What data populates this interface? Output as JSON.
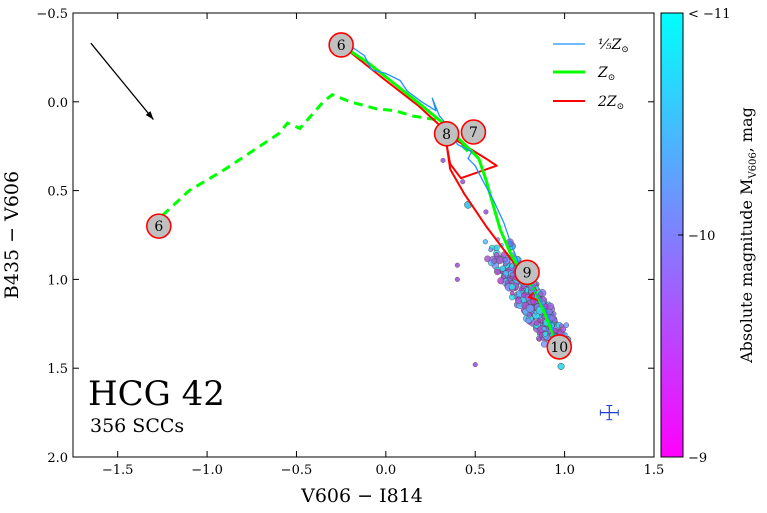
{
  "chart_data": {
    "type": "scatter",
    "title": "",
    "xlabel": "V606 − I814",
    "ylabel": "B435 − V606",
    "xlim": [
      -1.75,
      1.5
    ],
    "ylim": [
      2.0,
      -0.5
    ],
    "xticks": [
      -1.5,
      -1.0,
      -0.5,
      0.0,
      0.5,
      1.0,
      1.5
    ],
    "xtick_labels": [
      "−1.5",
      "−1.0",
      "−0.5",
      "0.0",
      "0.5",
      "1.0",
      "1.5"
    ],
    "yticks": [
      -0.5,
      0.0,
      0.5,
      1.0,
      1.5,
      2.0
    ],
    "ytick_labels": [
      "−0.5",
      "0.0",
      "0.5",
      "1.0",
      "1.5",
      "2.0"
    ],
    "annotation_main": "HCG 42",
    "annotation_sub": "356 SCCs",
    "colorbar": {
      "title": "Absolute magnitude M",
      "title_sub": "V606",
      "title_suffix": ", mag",
      "range": [
        -11,
        -9
      ],
      "tick_labels": [
        "< −11",
        "−10",
        "−9"
      ],
      "color_bright": "#00ffff",
      "color_faint": "#ff00ff"
    },
    "legend": [
      {
        "label": "⅕Z",
        "sub": "⊙",
        "color": "#1e90ff"
      },
      {
        "label": "Z",
        "sub": "⊙",
        "color": "#00ff00"
      },
      {
        "label": "2Z",
        "sub": "⊙",
        "color": "#ff0000"
      }
    ],
    "tracks": [
      {
        "name": "1/5 Zsun",
        "color": "#1e90ff",
        "width": 1.3,
        "points": [
          [
            -0.25,
            -0.35
          ],
          [
            -0.12,
            -0.26
          ],
          [
            -0.08,
            -0.18
          ],
          [
            0.0,
            -0.16
          ],
          [
            0.08,
            -0.12
          ],
          [
            0.12,
            -0.06
          ],
          [
            0.2,
            0.0
          ],
          [
            0.28,
            0.05
          ],
          [
            0.26,
            -0.02
          ],
          [
            0.3,
            0.08
          ],
          [
            0.36,
            0.15
          ],
          [
            0.4,
            0.24
          ],
          [
            0.48,
            0.28
          ],
          [
            0.46,
            0.32
          ],
          [
            0.5,
            0.36
          ],
          [
            0.54,
            0.44
          ],
          [
            0.6,
            0.55
          ],
          [
            0.66,
            0.68
          ],
          [
            0.7,
            0.8
          ],
          [
            0.74,
            0.9
          ],
          [
            0.8,
            1.0
          ],
          [
            0.84,
            1.08
          ],
          [
            0.9,
            1.18
          ],
          [
            0.94,
            1.3
          ],
          [
            0.96,
            1.38
          ]
        ]
      },
      {
        "name": "Zsun",
        "color": "#00ff00",
        "width": 3.0,
        "points": [
          [
            -0.25,
            -0.32
          ],
          [
            -0.1,
            -0.22
          ],
          [
            0.05,
            -0.1
          ],
          [
            0.2,
            0.02
          ],
          [
            0.32,
            0.12
          ],
          [
            0.4,
            0.2
          ],
          [
            0.48,
            0.28
          ],
          [
            0.52,
            0.32
          ],
          [
            0.56,
            0.44
          ],
          [
            0.6,
            0.58
          ],
          [
            0.64,
            0.72
          ],
          [
            0.7,
            0.86
          ],
          [
            0.76,
            0.96
          ],
          [
            0.82,
            1.04
          ],
          [
            0.86,
            1.12
          ],
          [
            0.9,
            1.22
          ],
          [
            0.94,
            1.32
          ],
          [
            0.96,
            1.38
          ]
        ]
      },
      {
        "name": "2 Zsun",
        "color": "#ff0000",
        "width": 2.0,
        "points": [
          [
            -0.25,
            -0.32
          ],
          [
            0.0,
            -0.12
          ],
          [
            0.18,
            0.02
          ],
          [
            0.32,
            0.15
          ],
          [
            0.4,
            0.22
          ],
          [
            0.48,
            0.27
          ],
          [
            0.56,
            0.32
          ],
          [
            0.62,
            0.36
          ],
          [
            0.42,
            0.43
          ],
          [
            0.36,
            0.35
          ],
          [
            0.34,
            0.24
          ],
          [
            0.36,
            0.38
          ],
          [
            0.44,
            0.52
          ],
          [
            0.56,
            0.7
          ],
          [
            0.68,
            0.86
          ],
          [
            0.76,
            0.96
          ],
          [
            0.84,
            1.06
          ],
          [
            0.8,
            1.1
          ],
          [
            0.86,
            1.12
          ],
          [
            0.9,
            1.22
          ],
          [
            0.94,
            1.3
          ],
          [
            0.96,
            1.38
          ]
        ]
      }
    ],
    "dashed_track": {
      "name": "young extension",
      "color": "#00ff00",
      "points": [
        [
          -1.25,
          0.64
        ],
        [
          -1.1,
          0.5
        ],
        [
          -0.9,
          0.38
        ],
        [
          -0.75,
          0.28
        ],
        [
          -0.6,
          0.18
        ],
        [
          -0.55,
          0.12
        ],
        [
          -0.48,
          0.15
        ],
        [
          -0.42,
          0.08
        ],
        [
          -0.35,
          0.0
        ],
        [
          -0.3,
          -0.04
        ],
        [
          -0.25,
          -0.02
        ],
        [
          -0.2,
          0.0
        ],
        [
          -0.05,
          0.04
        ],
        [
          0.05,
          0.05
        ],
        [
          0.15,
          0.08
        ],
        [
          0.28,
          0.1
        ],
        [
          0.38,
          0.2
        ],
        [
          0.48,
          0.3
        ]
      ]
    },
    "age_markers": [
      {
        "label": "6",
        "x": -0.25,
        "y": -0.32
      },
      {
        "label": "8",
        "x": 0.34,
        "y": 0.18
      },
      {
        "label": "7",
        "x": 0.49,
        "y": 0.17
      },
      {
        "label": "9",
        "x": 0.79,
        "y": 0.96
      },
      {
        "label": "10",
        "x": 0.97,
        "y": 1.38
      },
      {
        "label": "6",
        "x": -1.27,
        "y": 0.7
      }
    ],
    "reddening_arrow": {
      "from": [
        -1.65,
        -0.33
      ],
      "to": [
        -1.3,
        0.1
      ]
    },
    "error_bar": {
      "x": 1.25,
      "y": 1.75,
      "xerr": 0.05,
      "yerr": 0.04
    }
  }
}
